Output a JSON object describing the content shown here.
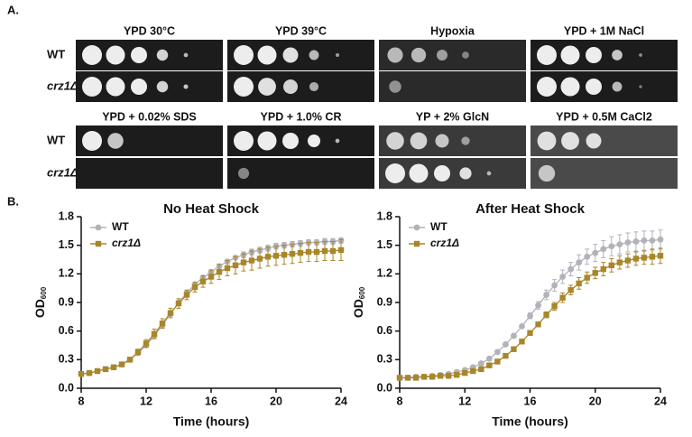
{
  "panel_a": {
    "label": "A.",
    "blocks": [
      {
        "conditions": [
          "YPD 30°C",
          "YPD 39°C",
          "Hypoxia",
          "YPD + 1M NaCl"
        ],
        "rows": [
          "WT",
          "crz1Δ"
        ]
      },
      {
        "conditions": [
          "YPD + 0.02% SDS",
          "YPD + 1.0% CR",
          "YP + 2% GlcN",
          "YPD + 0.5M CaCl2"
        ],
        "rows": [
          "WT",
          "crz1Δ"
        ]
      }
    ]
  },
  "panel_b_label": "B.",
  "chart_data": [
    {
      "type": "line",
      "title": "No Heat Shock",
      "x_label": "Time (hours)",
      "y_label": "OD",
      "y_label_sub": "600",
      "xlim": [
        8,
        24
      ],
      "xticks": [
        8,
        12,
        16,
        20,
        24
      ],
      "ylim": [
        0,
        1.8
      ],
      "yticks": [
        {
          "value": 0,
          "label": "0.0"
        },
        0.3,
        0.6,
        0.9,
        1.2,
        1.5,
        1.8
      ],
      "legend": "upper left",
      "x": [
        8,
        8.5,
        9,
        9.5,
        10,
        10.5,
        11,
        11.5,
        12,
        12.5,
        13,
        13.5,
        14,
        14.5,
        15,
        15.5,
        16,
        16.5,
        17,
        17.5,
        18,
        18.5,
        19,
        19.5,
        20,
        20.5,
        21,
        21.5,
        22,
        22.5,
        23,
        23.5,
        24
      ],
      "series": [
        {
          "name": "WT",
          "color": "#b2b2ba",
          "marker": "circle",
          "values": [
            0.15,
            0.16,
            0.18,
            0.2,
            0.22,
            0.25,
            0.3,
            0.37,
            0.45,
            0.55,
            0.66,
            0.78,
            0.9,
            1.0,
            1.09,
            1.16,
            1.22,
            1.28,
            1.33,
            1.37,
            1.4,
            1.43,
            1.45,
            1.47,
            1.49,
            1.5,
            1.51,
            1.52,
            1.53,
            1.53,
            1.54,
            1.54,
            1.55
          ],
          "errors": [
            0.01,
            0.01,
            0.01,
            0.01,
            0.01,
            0.01,
            0.01,
            0.01,
            0.01,
            0.01,
            0.01,
            0.01,
            0.02,
            0.02,
            0.02,
            0.02,
            0.02,
            0.02,
            0.02,
            0.02,
            0.03,
            0.03,
            0.03,
            0.03,
            0.03,
            0.03,
            0.03,
            0.03,
            0.03,
            0.03,
            0.03,
            0.03,
            0.03
          ]
        },
        {
          "name": "crz1Δ",
          "color": "#a8862a",
          "marker": "square",
          "values": [
            0.15,
            0.16,
            0.18,
            0.2,
            0.22,
            0.25,
            0.3,
            0.38,
            0.47,
            0.57,
            0.68,
            0.79,
            0.89,
            0.98,
            1.06,
            1.12,
            1.17,
            1.22,
            1.26,
            1.29,
            1.32,
            1.34,
            1.36,
            1.38,
            1.39,
            1.4,
            1.41,
            1.42,
            1.43,
            1.43,
            1.44,
            1.44,
            1.45
          ],
          "errors": [
            0.01,
            0.01,
            0.01,
            0.01,
            0.01,
            0.01,
            0.02,
            0.03,
            0.04,
            0.05,
            0.05,
            0.05,
            0.05,
            0.05,
            0.05,
            0.06,
            0.07,
            0.08,
            0.08,
            0.09,
            0.09,
            0.1,
            0.1,
            0.1,
            0.1,
            0.1,
            0.1,
            0.1,
            0.1,
            0.1,
            0.1,
            0.1,
            0.11
          ]
        }
      ]
    },
    {
      "type": "line",
      "title": "After Heat Shock",
      "x_label": "Time (hours)",
      "y_label": "OD",
      "y_label_sub": "600",
      "xlim": [
        8,
        24
      ],
      "xticks": [
        8,
        12,
        16,
        20,
        24
      ],
      "ylim": [
        0,
        1.8
      ],
      "yticks": [
        {
          "value": 0,
          "label": "0.0"
        },
        0.3,
        0.6,
        0.9,
        1.2,
        1.5,
        1.8
      ],
      "legend": "upper left",
      "x": [
        8,
        8.5,
        9,
        9.5,
        10,
        10.5,
        11,
        11.5,
        12,
        12.5,
        13,
        13.5,
        14,
        14.5,
        15,
        15.5,
        16,
        16.5,
        17,
        17.5,
        18,
        18.5,
        19,
        19.5,
        20,
        20.5,
        21,
        21.5,
        22,
        22.5,
        23,
        23.5,
        24
      ],
      "series": [
        {
          "name": "WT",
          "color": "#b2b2ba",
          "marker": "circle",
          "values": [
            0.11,
            0.11,
            0.12,
            0.12,
            0.13,
            0.14,
            0.15,
            0.17,
            0.19,
            0.22,
            0.26,
            0.31,
            0.38,
            0.46,
            0.55,
            0.65,
            0.76,
            0.87,
            0.98,
            1.08,
            1.17,
            1.25,
            1.32,
            1.38,
            1.42,
            1.46,
            1.49,
            1.51,
            1.53,
            1.54,
            1.55,
            1.55,
            1.56
          ],
          "errors": [
            0.01,
            0.01,
            0.01,
            0.01,
            0.01,
            0.01,
            0.01,
            0.01,
            0.01,
            0.01,
            0.02,
            0.02,
            0.02,
            0.02,
            0.02,
            0.02,
            0.03,
            0.04,
            0.05,
            0.06,
            0.07,
            0.07,
            0.08,
            0.08,
            0.09,
            0.09,
            0.1,
            0.1,
            0.1,
            0.1,
            0.1,
            0.1,
            0.1
          ]
        },
        {
          "name": "crz1Δ",
          "color": "#a8862a",
          "marker": "square",
          "values": [
            0.11,
            0.11,
            0.11,
            0.12,
            0.12,
            0.13,
            0.13,
            0.14,
            0.16,
            0.18,
            0.2,
            0.24,
            0.28,
            0.34,
            0.41,
            0.49,
            0.58,
            0.67,
            0.77,
            0.86,
            0.95,
            1.03,
            1.1,
            1.16,
            1.21,
            1.25,
            1.29,
            1.32,
            1.34,
            1.36,
            1.37,
            1.38,
            1.39
          ],
          "errors": [
            0.01,
            0.01,
            0.01,
            0.01,
            0.01,
            0.01,
            0.01,
            0.01,
            0.01,
            0.01,
            0.01,
            0.01,
            0.02,
            0.02,
            0.02,
            0.02,
            0.02,
            0.02,
            0.03,
            0.04,
            0.05,
            0.05,
            0.06,
            0.06,
            0.06,
            0.07,
            0.07,
            0.07,
            0.07,
            0.07,
            0.07,
            0.08,
            0.08
          ]
        }
      ]
    }
  ]
}
